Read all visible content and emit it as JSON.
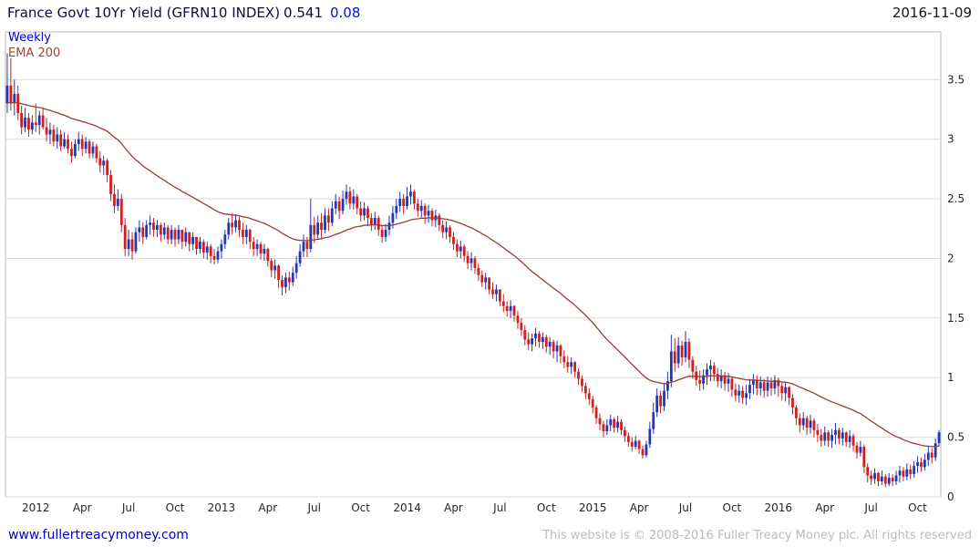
{
  "header": {
    "title": "France Govt 10Yr Yield (GFRN10 INDEX)",
    "last_value": "0.541",
    "change": "0.08",
    "date": "2016-11-09"
  },
  "chart": {
    "timeframe_label": "Weekly",
    "ema_label": "EMA 200"
  },
  "footer": {
    "site_link": "www.fullertreacymoney.com",
    "copyright": "This website is © 2008-2016 Fuller Treacy Money plc. All rights reserved"
  },
  "colors": {
    "title_text": "#0c0c3c",
    "change_text": "#0013d6",
    "date_text": "#15151c",
    "timeframe_label": "#0000cd",
    "ema_label": "#a2423a",
    "candle_up": "#2336b4",
    "candle_down": "#d01f1f",
    "ema": "#9a3c35",
    "grid": "#dcdcdc",
    "plot_border": "#b8b8b8",
    "axis_text": "#26262b",
    "link": "#0000c8",
    "copyright_text": "#b9bcc4"
  },
  "chart_data": {
    "type": "candlestick",
    "title": "France Govt 10Yr Yield (GFRN10 INDEX)",
    "timeframe": "Weekly",
    "overlay": "EMA 200",
    "last_close": 0.541,
    "change": 0.08,
    "y_ticks": [
      0,
      0.5,
      1,
      1.5,
      2,
      2.5,
      3,
      3.5
    ],
    "y_range": [
      0,
      3.9
    ],
    "x_ticks": [
      {
        "label": "2012",
        "week": 8
      },
      {
        "label": "Apr",
        "week": 21
      },
      {
        "label": "Jul",
        "week": 34
      },
      {
        "label": "Oct",
        "week": 47
      },
      {
        "label": "2013",
        "week": 60
      },
      {
        "label": "Apr",
        "week": 73
      },
      {
        "label": "Jul",
        "week": 86
      },
      {
        "label": "Oct",
        "week": 99
      },
      {
        "label": "2014",
        "week": 112
      },
      {
        "label": "Apr",
        "week": 125
      },
      {
        "label": "Jul",
        "week": 138
      },
      {
        "label": "Oct",
        "week": 151
      },
      {
        "label": "2015",
        "week": 164
      },
      {
        "label": "Apr",
        "week": 177
      },
      {
        "label": "Jul",
        "week": 190
      },
      {
        "label": "Oct",
        "week": 203
      },
      {
        "label": "2016",
        "week": 216
      },
      {
        "label": "Apr",
        "week": 229
      },
      {
        "label": "Jul",
        "week": 242
      },
      {
        "label": "Oct",
        "week": 255
      }
    ],
    "first_open": 3.3,
    "ema_period_weeks": 45,
    "weeks_hlc": [
      [
        3.72,
        3.22,
        3.45
      ],
      [
        3.68,
        3.24,
        3.3
      ],
      [
        3.5,
        3.2,
        3.38
      ],
      [
        3.45,
        3.16,
        3.22
      ],
      [
        3.28,
        3.04,
        3.1
      ],
      [
        3.26,
        3.06,
        3.18
      ],
      [
        3.22,
        3.02,
        3.08
      ],
      [
        3.2,
        3.04,
        3.14
      ],
      [
        3.3,
        3.06,
        3.12
      ],
      [
        3.24,
        3.04,
        3.2
      ],
      [
        3.26,
        3.08,
        3.1
      ],
      [
        3.18,
        2.98,
        3.04
      ],
      [
        3.14,
        2.96,
        3.08
      ],
      [
        3.12,
        2.94,
        2.98
      ],
      [
        3.1,
        2.92,
        3.04
      ],
      [
        3.08,
        2.9,
        2.94
      ],
      [
        3.06,
        2.92,
        3.0
      ],
      [
        3.04,
        2.88,
        2.92
      ],
      [
        2.98,
        2.8,
        2.86
      ],
      [
        3.0,
        2.84,
        2.96
      ],
      [
        3.06,
        2.9,
        3.0
      ],
      [
        3.04,
        2.86,
        2.92
      ],
      [
        3.02,
        2.88,
        2.98
      ],
      [
        3.0,
        2.84,
        2.88
      ],
      [
        2.98,
        2.84,
        2.94
      ],
      [
        2.96,
        2.8,
        2.84
      ],
      [
        2.9,
        2.72,
        2.78
      ],
      [
        2.86,
        2.7,
        2.82
      ],
      [
        2.84,
        2.64,
        2.7
      ],
      [
        2.74,
        2.48,
        2.54
      ],
      [
        2.62,
        2.38,
        2.44
      ],
      [
        2.58,
        2.4,
        2.5
      ],
      [
        2.54,
        2.22,
        2.28
      ],
      [
        2.34,
        2.02,
        2.08
      ],
      [
        2.24,
        2.02,
        2.16
      ],
      [
        2.22,
        1.99,
        2.06
      ],
      [
        2.26,
        2.04,
        2.22
      ],
      [
        2.32,
        2.14,
        2.26
      ],
      [
        2.3,
        2.12,
        2.18
      ],
      [
        2.32,
        2.16,
        2.28
      ],
      [
        2.36,
        2.2,
        2.3
      ],
      [
        2.34,
        2.18,
        2.24
      ],
      [
        2.32,
        2.18,
        2.28
      ],
      [
        2.3,
        2.14,
        2.2
      ],
      [
        2.3,
        2.16,
        2.26
      ],
      [
        2.28,
        2.12,
        2.16
      ],
      [
        2.28,
        2.12,
        2.24
      ],
      [
        2.26,
        2.1,
        2.16
      ],
      [
        2.28,
        2.12,
        2.24
      ],
      [
        2.24,
        2.08,
        2.14
      ],
      [
        2.26,
        2.1,
        2.22
      ],
      [
        2.22,
        2.06,
        2.12
      ],
      [
        2.22,
        2.07,
        2.18
      ],
      [
        2.18,
        2.03,
        2.08
      ],
      [
        2.18,
        2.04,
        2.14
      ],
      [
        2.16,
        2.0,
        2.05
      ],
      [
        2.14,
        1.99,
        2.1
      ],
      [
        2.12,
        1.96,
        2.02
      ],
      [
        2.08,
        1.95,
        1.99
      ],
      [
        2.1,
        1.96,
        2.06
      ],
      [
        2.16,
        2.0,
        2.12
      ],
      [
        2.24,
        2.08,
        2.2
      ],
      [
        2.34,
        2.16,
        2.3
      ],
      [
        2.38,
        2.2,
        2.26
      ],
      [
        2.37,
        2.22,
        2.32
      ],
      [
        2.35,
        2.18,
        2.24
      ],
      [
        2.3,
        2.12,
        2.18
      ],
      [
        2.28,
        2.12,
        2.24
      ],
      [
        2.25,
        2.08,
        2.14
      ],
      [
        2.18,
        2.02,
        2.08
      ],
      [
        2.16,
        2.02,
        2.12
      ],
      [
        2.14,
        1.99,
        2.04
      ],
      [
        2.12,
        1.98,
        2.08
      ],
      [
        2.09,
        1.93,
        1.98
      ],
      [
        2.0,
        1.84,
        1.9
      ],
      [
        1.99,
        1.83,
        1.94
      ],
      [
        1.95,
        1.75,
        1.82
      ],
      [
        1.86,
        1.69,
        1.76
      ],
      [
        1.88,
        1.71,
        1.84
      ],
      [
        1.89,
        1.73,
        1.8
      ],
      [
        1.93,
        1.77,
        1.88
      ],
      [
        2.02,
        1.83,
        1.96
      ],
      [
        2.12,
        1.93,
        2.06
      ],
      [
        2.2,
        2.01,
        2.14
      ],
      [
        2.18,
        2.01,
        2.08
      ],
      [
        2.5,
        2.05,
        2.28
      ],
      [
        2.35,
        2.13,
        2.2
      ],
      [
        2.36,
        2.17,
        2.3
      ],
      [
        2.38,
        2.17,
        2.24
      ],
      [
        2.42,
        2.21,
        2.36
      ],
      [
        2.42,
        2.23,
        2.3
      ],
      [
        2.48,
        2.27,
        2.42
      ],
      [
        2.54,
        2.37,
        2.48
      ],
      [
        2.52,
        2.33,
        2.4
      ],
      [
        2.57,
        2.37,
        2.5
      ],
      [
        2.62,
        2.45,
        2.56
      ],
      [
        2.6,
        2.41,
        2.46
      ],
      [
        2.58,
        2.41,
        2.52
      ],
      [
        2.54,
        2.37,
        2.42
      ],
      [
        2.48,
        2.31,
        2.36
      ],
      [
        2.47,
        2.32,
        2.42
      ],
      [
        2.44,
        2.27,
        2.34
      ],
      [
        2.38,
        2.23,
        2.28
      ],
      [
        2.39,
        2.24,
        2.34
      ],
      [
        2.36,
        2.19,
        2.24
      ],
      [
        2.28,
        2.13,
        2.18
      ],
      [
        2.29,
        2.14,
        2.24
      ],
      [
        2.36,
        2.19,
        2.3
      ],
      [
        2.44,
        2.25,
        2.38
      ],
      [
        2.5,
        2.33,
        2.44
      ],
      [
        2.56,
        2.39,
        2.5
      ],
      [
        2.54,
        2.37,
        2.44
      ],
      [
        2.6,
        2.41,
        2.52
      ],
      [
        2.62,
        2.45,
        2.56
      ],
      [
        2.58,
        2.41,
        2.46
      ],
      [
        2.5,
        2.35,
        2.4
      ],
      [
        2.49,
        2.34,
        2.44
      ],
      [
        2.46,
        2.29,
        2.36
      ],
      [
        2.45,
        2.3,
        2.4
      ],
      [
        2.42,
        2.27,
        2.32
      ],
      [
        2.41,
        2.26,
        2.36
      ],
      [
        2.38,
        2.23,
        2.28
      ],
      [
        2.32,
        2.17,
        2.22
      ],
      [
        2.31,
        2.16,
        2.26
      ],
      [
        2.28,
        2.13,
        2.18
      ],
      [
        2.22,
        2.07,
        2.12
      ],
      [
        2.16,
        2.01,
        2.06
      ],
      [
        2.15,
        2.0,
        2.1
      ],
      [
        2.12,
        1.97,
        2.02
      ],
      [
        2.06,
        1.91,
        1.96
      ],
      [
        2.05,
        1.9,
        2.0
      ],
      [
        2.02,
        1.87,
        1.92
      ],
      [
        1.96,
        1.81,
        1.86
      ],
      [
        1.9,
        1.76,
        1.8
      ],
      [
        1.88,
        1.74,
        1.84
      ],
      [
        1.84,
        1.7,
        1.74
      ],
      [
        1.8,
        1.66,
        1.7
      ],
      [
        1.78,
        1.64,
        1.74
      ],
      [
        1.74,
        1.6,
        1.64
      ],
      [
        1.7,
        1.55,
        1.6
      ],
      [
        1.64,
        1.51,
        1.56
      ],
      [
        1.65,
        1.5,
        1.6
      ],
      [
        1.61,
        1.47,
        1.52
      ],
      [
        1.56,
        1.41,
        1.46
      ],
      [
        1.5,
        1.35,
        1.4
      ],
      [
        1.44,
        1.27,
        1.32
      ],
      [
        1.38,
        1.23,
        1.28
      ],
      [
        1.37,
        1.22,
        1.33
      ],
      [
        1.42,
        1.26,
        1.37
      ],
      [
        1.39,
        1.25,
        1.3
      ],
      [
        1.38,
        1.24,
        1.34
      ],
      [
        1.36,
        1.21,
        1.26
      ],
      [
        1.34,
        1.19,
        1.3
      ],
      [
        1.32,
        1.16,
        1.22
      ],
      [
        1.31,
        1.13,
        1.27
      ],
      [
        1.28,
        1.12,
        1.18
      ],
      [
        1.23,
        1.08,
        1.13
      ],
      [
        1.18,
        1.04,
        1.09
      ],
      [
        1.17,
        1.03,
        1.13
      ],
      [
        1.14,
        1.0,
        1.05
      ],
      [
        1.08,
        0.94,
        0.99
      ],
      [
        1.02,
        0.88,
        0.93
      ],
      [
        0.96,
        0.82,
        0.87
      ],
      [
        0.91,
        0.77,
        0.82
      ],
      [
        0.85,
        0.7,
        0.75
      ],
      [
        0.77,
        0.61,
        0.66
      ],
      [
        0.7,
        0.56,
        0.61
      ],
      [
        0.64,
        0.5,
        0.55
      ],
      [
        0.65,
        0.52,
        0.6
      ],
      [
        0.69,
        0.55,
        0.65
      ],
      [
        0.67,
        0.54,
        0.58
      ],
      [
        0.68,
        0.54,
        0.63
      ],
      [
        0.65,
        0.52,
        0.56
      ],
      [
        0.59,
        0.46,
        0.51
      ],
      [
        0.54,
        0.42,
        0.46
      ],
      [
        0.5,
        0.38,
        0.42
      ],
      [
        0.51,
        0.4,
        0.47
      ],
      [
        0.48,
        0.36,
        0.4
      ],
      [
        0.43,
        0.32,
        0.35
      ],
      [
        0.47,
        0.33,
        0.44
      ],
      [
        0.63,
        0.41,
        0.57
      ],
      [
        0.79,
        0.53,
        0.71
      ],
      [
        0.91,
        0.67,
        0.85
      ],
      [
        0.89,
        0.7,
        0.76
      ],
      [
        0.95,
        0.72,
        0.89
      ],
      [
        1.05,
        0.82,
        0.97
      ],
      [
        1.36,
        0.92,
        1.22
      ],
      [
        1.33,
        1.05,
        1.12
      ],
      [
        1.34,
        1.08,
        1.27
      ],
      [
        1.31,
        1.1,
        1.17
      ],
      [
        1.39,
        1.13,
        1.3
      ],
      [
        1.33,
        1.08,
        1.15
      ],
      [
        1.18,
        0.99,
        1.05
      ],
      [
        1.1,
        0.93,
        0.98
      ],
      [
        1.06,
        0.89,
        0.95
      ],
      [
        1.07,
        0.9,
        1.02
      ],
      [
        1.12,
        0.94,
        1.07
      ],
      [
        1.15,
        0.97,
        1.1
      ],
      [
        1.13,
        0.97,
        1.03
      ],
      [
        1.08,
        0.92,
        0.97
      ],
      [
        1.07,
        0.91,
        1.02
      ],
      [
        1.05,
        0.89,
        0.95
      ],
      [
        1.04,
        0.88,
        0.99
      ],
      [
        1.01,
        0.84,
        0.9
      ],
      [
        0.95,
        0.8,
        0.85
      ],
      [
        0.94,
        0.79,
        0.89
      ],
      [
        0.93,
        0.78,
        0.83
      ],
      [
        0.94,
        0.77,
        0.87
      ],
      [
        0.99,
        0.82,
        0.94
      ],
      [
        1.03,
        0.86,
        0.98
      ],
      [
        1.02,
        0.85,
        0.91
      ],
      [
        1.01,
        0.85,
        0.96
      ],
      [
        0.99,
        0.83,
        0.89
      ],
      [
        1.01,
        0.84,
        0.96
      ],
      [
        1.0,
        0.85,
        0.91
      ],
      [
        1.02,
        0.86,
        0.98
      ],
      [
        1.0,
        0.84,
        0.93
      ],
      [
        0.97,
        0.81,
        0.87
      ],
      [
        0.96,
        0.8,
        0.92
      ],
      [
        0.93,
        0.77,
        0.83
      ],
      [
        0.86,
        0.69,
        0.75
      ],
      [
        0.77,
        0.6,
        0.66
      ],
      [
        0.7,
        0.54,
        0.6
      ],
      [
        0.71,
        0.56,
        0.66
      ],
      [
        0.68,
        0.52,
        0.58
      ],
      [
        0.69,
        0.53,
        0.64
      ],
      [
        0.66,
        0.5,
        0.56
      ],
      [
        0.61,
        0.46,
        0.52
      ],
      [
        0.57,
        0.42,
        0.47
      ],
      [
        0.59,
        0.43,
        0.54
      ],
      [
        0.56,
        0.42,
        0.47
      ],
      [
        0.57,
        0.41,
        0.52
      ],
      [
        0.62,
        0.44,
        0.56
      ],
      [
        0.58,
        0.44,
        0.49
      ],
      [
        0.58,
        0.43,
        0.54
      ],
      [
        0.55,
        0.42,
        0.46
      ],
      [
        0.56,
        0.41,
        0.51
      ],
      [
        0.53,
        0.38,
        0.43
      ],
      [
        0.46,
        0.32,
        0.37
      ],
      [
        0.47,
        0.34,
        0.42
      ],
      [
        0.44,
        0.2,
        0.25
      ],
      [
        0.28,
        0.12,
        0.18
      ],
      [
        0.22,
        0.1,
        0.15
      ],
      [
        0.24,
        0.11,
        0.2
      ],
      [
        0.21,
        0.09,
        0.13
      ],
      [
        0.22,
        0.1,
        0.17
      ],
      [
        0.19,
        0.08,
        0.11
      ],
      [
        0.2,
        0.09,
        0.16
      ],
      [
        0.19,
        0.09,
        0.13
      ],
      [
        0.22,
        0.1,
        0.18
      ],
      [
        0.26,
        0.12,
        0.22
      ],
      [
        0.25,
        0.13,
        0.17
      ],
      [
        0.28,
        0.14,
        0.23
      ],
      [
        0.27,
        0.15,
        0.19
      ],
      [
        0.3,
        0.16,
        0.26
      ],
      [
        0.34,
        0.2,
        0.29
      ],
      [
        0.33,
        0.21,
        0.25
      ],
      [
        0.36,
        0.22,
        0.31
      ],
      [
        0.42,
        0.26,
        0.37
      ],
      [
        0.41,
        0.28,
        0.33
      ],
      [
        0.49,
        0.3,
        0.45
      ],
      [
        0.56,
        0.42,
        0.541
      ]
    ]
  }
}
